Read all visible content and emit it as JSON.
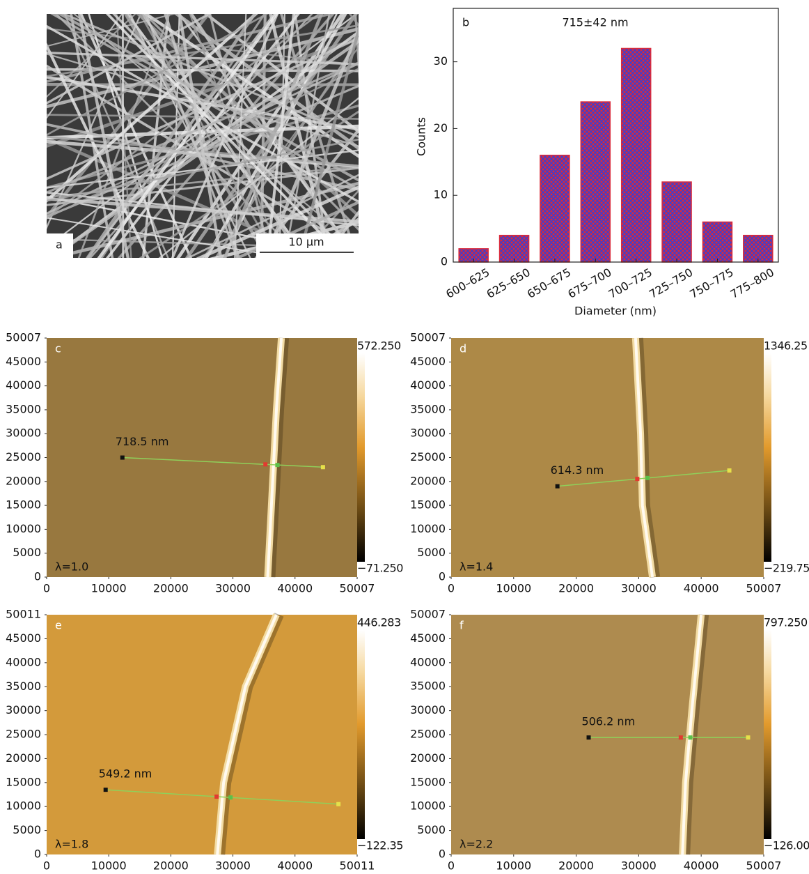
{
  "chart_data": [
    {
      "type": "image",
      "panel_label": "a",
      "scale_bar_label": "10 μm"
    },
    {
      "type": "bar",
      "panel_label": "b",
      "annotation": "715±42 nm",
      "x_label": "Diameter (nm)",
      "y_label": "Counts",
      "categories": [
        "600–625",
        "625–650",
        "650–675",
        "675–700",
        "700–725",
        "725–750",
        "750–775",
        "775–800"
      ],
      "values": [
        2,
        4,
        16,
        24,
        32,
        12,
        6,
        4
      ],
      "color": "#d92a3c",
      "hatch_color": "#3b3fd0",
      "ylim": [
        0,
        38
      ],
      "yticks": [
        0,
        10,
        20,
        30
      ]
    },
    {
      "type": "heatmap",
      "panel_label": "c",
      "lambda_label": "λ=1.0",
      "profile_label": "718.5 nm",
      "background": "#98783f",
      "xlim": [
        0,
        50007
      ],
      "ylim": [
        0,
        50007
      ],
      "xticks": [
        0,
        10000,
        20000,
        30000,
        40000,
        50007
      ],
      "yticks": [
        0,
        5000,
        10000,
        15000,
        20000,
        25000,
        30000,
        35000,
        40000,
        45000,
        50007
      ],
      "clim": [
        -71.25,
        572.25
      ],
      "colorbar_ticks": [
        {
          "value": 572.25,
          "label": "572.250"
        },
        {
          "value": -71.25,
          "label": "−71.250"
        }
      ],
      "fiber": {
        "x": [
          37800,
          37000,
          36200,
          35600
        ],
        "y": [
          50007,
          35000,
          15000,
          0
        ]
      },
      "profile": {
        "x": [
          12200,
          44500
        ],
        "y": [
          25000,
          23000
        ]
      }
    },
    {
      "type": "heatmap",
      "panel_label": "d",
      "lambda_label": "λ=1.4",
      "profile_label": "614.3 nm",
      "background": "#ad8947",
      "xlim": [
        0,
        50007
      ],
      "ylim": [
        0,
        50007
      ],
      "xticks": [
        0,
        10000,
        20000,
        30000,
        40000,
        50007
      ],
      "yticks": [
        0,
        5000,
        10000,
        15000,
        20000,
        25000,
        30000,
        35000,
        40000,
        45000,
        50007
      ],
      "clim": [
        -219.75,
        1346.25
      ],
      "colorbar_ticks": [
        1346.25,
        {
          "value": -219.75,
          "label": "−219.75"
        }
      ],
      "fiber": {
        "x": [
          29500,
          30300,
          30600,
          32200
        ],
        "y": [
          50007,
          30000,
          15000,
          0
        ]
      },
      "profile": {
        "x": [
          17000,
          44500
        ],
        "y": [
          19000,
          22300
        ]
      }
    },
    {
      "type": "heatmap",
      "panel_label": "e",
      "lambda_label": "λ=1.8",
      "profile_label": "549.2 nm",
      "background": "#d39a3b",
      "xlim": [
        0,
        50011
      ],
      "ylim": [
        0,
        50011
      ],
      "xticks": [
        0,
        10000,
        20000,
        30000,
        40000,
        50011
      ],
      "yticks": [
        0,
        5000,
        10000,
        15000,
        20000,
        25000,
        30000,
        35000,
        40000,
        45000,
        50011
      ],
      "clim": [
        -122.35,
        446.283
      ],
      "colorbar_ticks": [
        446.283,
        {
          "value": -122.35,
          "label": "−122.35"
        }
      ],
      "fiber": {
        "x": [
          37000,
          32000,
          28500,
          27500
        ],
        "y": [
          50011,
          35000,
          15000,
          0
        ]
      },
      "profile": {
        "x": [
          9500,
          47000
        ],
        "y": [
          13500,
          10500
        ]
      }
    },
    {
      "type": "heatmap",
      "panel_label": "f",
      "lambda_label": "λ=2.2",
      "profile_label": "506.2 nm",
      "background": "#ae8b4f",
      "xlim": [
        0,
        50007
      ],
      "ylim": [
        0,
        50007
      ],
      "xticks": [
        0,
        10000,
        20000,
        30000,
        40000,
        50007
      ],
      "yticks": [
        0,
        5000,
        10000,
        15000,
        20000,
        25000,
        30000,
        35000,
        40000,
        45000,
        50007
      ],
      "clim": [
        -126,
        797.25
      ],
      "colorbar_ticks": [
        {
          "value": 797.25,
          "label": "797.250"
        },
        {
          "value": -126,
          "label": "−126.00"
        }
      ],
      "fiber": {
        "x": [
          40000,
          38500,
          37500,
          37000
        ],
        "y": [
          50007,
          30000,
          15000,
          0
        ]
      },
      "profile": {
        "x": [
          22000,
          47500
        ],
        "y": [
          24400,
          24400
        ]
      }
    }
  ]
}
